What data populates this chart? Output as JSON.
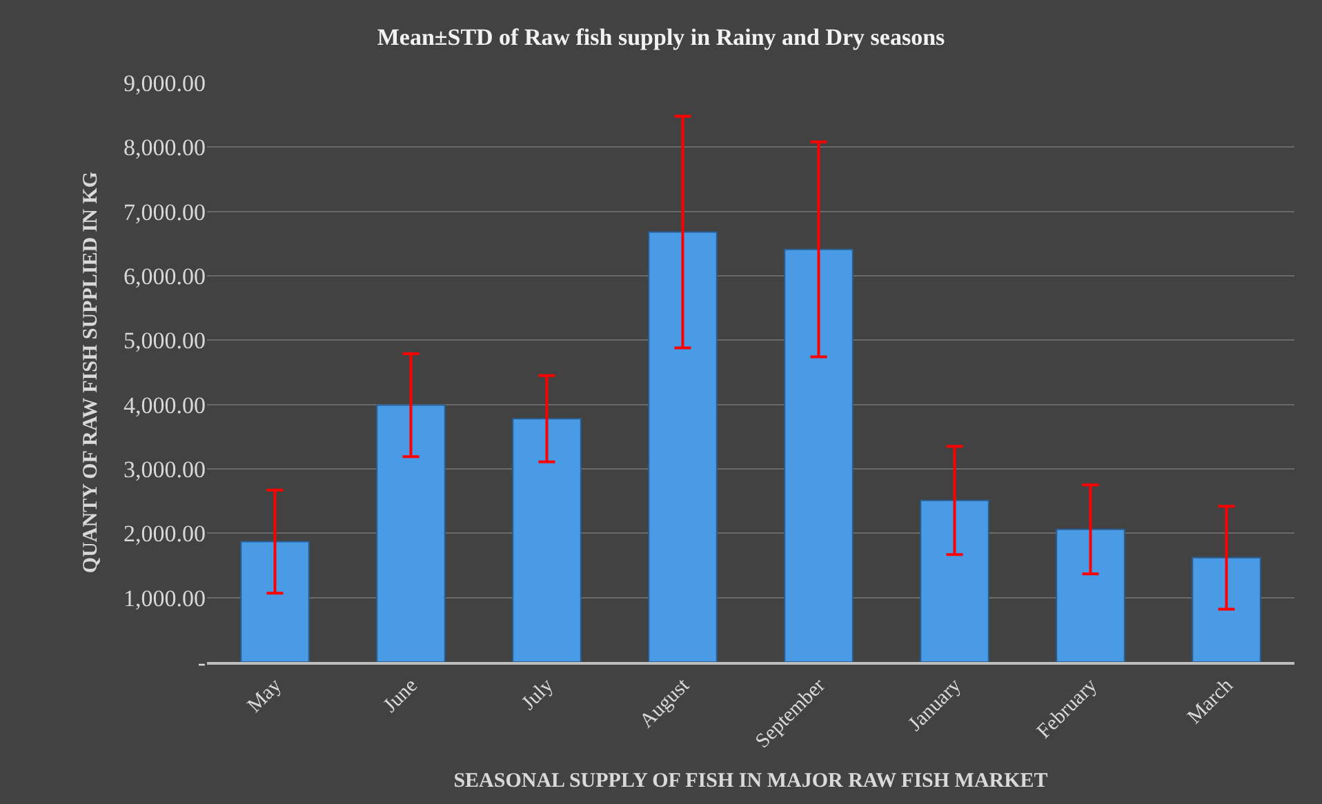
{
  "chart_data": {
    "type": "bar",
    "title": "Mean±STD of Raw fish supply in Rainy and Dry seasons",
    "xlabel": "SEASONAL SUPPLY OF FISH IN MAJOR RAW FISH MARKET",
    "ylabel": "QUANTY OF RAW FISH SUPPLIED IN KG",
    "categories": [
      "May",
      "June",
      "July",
      "August",
      "September",
      "January",
      "February",
      "March"
    ],
    "values": [
      1870,
      3990,
      3780,
      6680,
      6410,
      2510,
      2060,
      1620
    ],
    "errors": [
      800,
      800,
      670,
      1800,
      1670,
      840,
      690,
      800
    ],
    "color": "#4a9be6",
    "ylim": [
      0,
      9000
    ],
    "yticks": [
      {
        "value": 0,
        "label": "-"
      },
      {
        "value": 1000,
        "label": "1,000.00"
      },
      {
        "value": 2000,
        "label": "2,000.00"
      },
      {
        "value": 3000,
        "label": "3,000.00"
      },
      {
        "value": 4000,
        "label": "4,000.00"
      },
      {
        "value": 5000,
        "label": "5,000.00"
      },
      {
        "value": 6000,
        "label": "6,000.00"
      },
      {
        "value": 7000,
        "label": "7,000.00"
      },
      {
        "value": 8000,
        "label": "8,000.00"
      },
      {
        "value": 9000,
        "label": "9,000.00"
      }
    ],
    "grid": "y"
  }
}
